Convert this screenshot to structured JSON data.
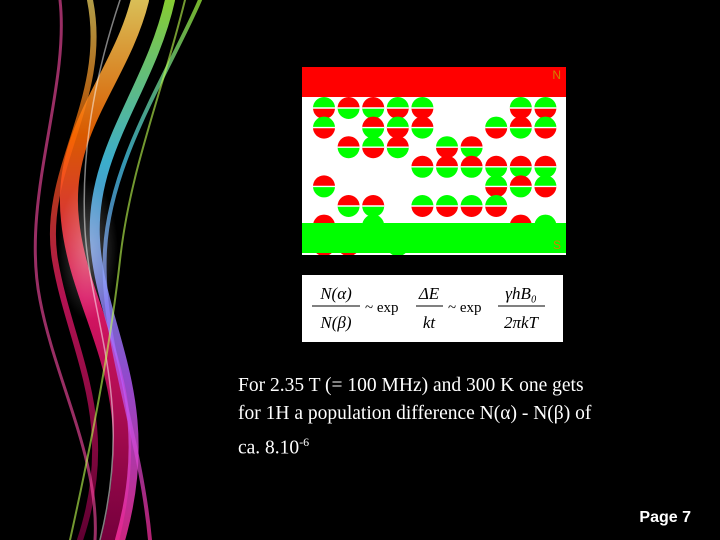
{
  "poles": {
    "north_label": "N",
    "south_label": "S",
    "north_color": "#ff0000",
    "south_color": "#00ff00",
    "label_color": "#d08000"
  },
  "dipole_colors": {
    "red": "#ff0000",
    "green": "#00ff00"
  },
  "dipole_grid": [
    [
      "up",
      "down",
      "down",
      "up",
      "up",
      "",
      "",
      "",
      "up",
      "up"
    ],
    [
      "up",
      "",
      "down",
      "up",
      "down",
      "",
      "",
      "up",
      "down",
      "up"
    ],
    [
      "",
      "down",
      "up",
      "down",
      "",
      "up",
      "down",
      "",
      "",
      ""
    ],
    [
      "",
      "",
      "",
      "",
      "down",
      "down",
      "down",
      "down",
      "down",
      "down"
    ],
    [
      "down",
      "",
      "",
      "",
      "",
      "",
      "",
      "up",
      "down",
      "up"
    ],
    [
      "",
      "down",
      "down",
      "",
      "up",
      "up",
      "up",
      "up",
      "",
      ""
    ],
    [
      "down",
      "",
      "up",
      "",
      "",
      "",
      "",
      "",
      "down",
      "up"
    ],
    [
      "up",
      "up",
      "",
      "down",
      "",
      "",
      "",
      "",
      "",
      ""
    ]
  ],
  "formula": {
    "lhs_num": "N(α)",
    "lhs_den": "N(β)",
    "op1": "~ exp",
    "frac1_num": "ΔE",
    "frac1_den": "kt",
    "op2": "~ exp",
    "frac2_num": "γhB₀",
    "frac2_den": "2πkT"
  },
  "caption": {
    "line1": "For 2.35 T (= 100 MHz) and 300 K one gets",
    "line2": "for 1H a population difference N(α) - N(β) of",
    "line3_prefix": "ca. 8.10",
    "line3_sup": "-6"
  },
  "footer": {
    "page_label": "Page 7"
  }
}
